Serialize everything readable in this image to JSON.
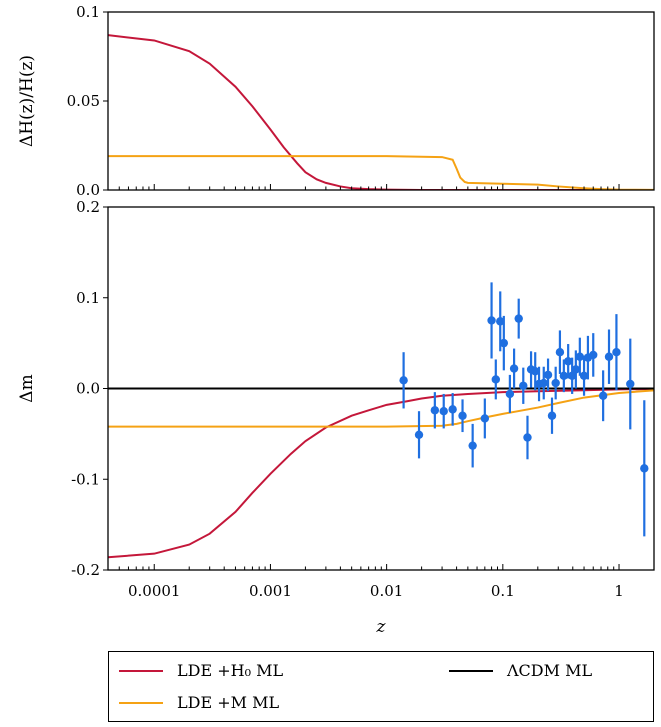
{
  "colors": {
    "lde_h0": "#c4173a",
    "lde_m": "#f5a214",
    "lcdm": "#000000",
    "data": "#1f6fe0"
  },
  "legend": {
    "lde_h0": "LDE +H₀ ML",
    "lde_m": "LDE +M  ML",
    "lcdm": "ΛCDM ML"
  },
  "chart_data": [
    {
      "type": "line",
      "xscale": "log",
      "xlim": [
        4e-05,
        2.0
      ],
      "ylabel": "ΔH(z)/H(z)",
      "ylim": [
        0.0,
        0.1
      ],
      "yticks": [
        "0.0",
        "0.05",
        "0.1"
      ],
      "ytick_values": [
        0.0,
        0.05,
        0.1
      ],
      "series": [
        {
          "name": "LDE +H₀ ML",
          "x": [
            4e-05,
            0.0001,
            0.0002,
            0.0003,
            0.0005,
            0.0007,
            0.001,
            0.0013,
            0.0017,
            0.002,
            0.0025,
            0.003,
            0.004,
            0.005,
            0.007,
            0.01,
            0.02,
            0.05,
            2.0
          ],
          "y": [
            0.087,
            0.084,
            0.078,
            0.071,
            0.058,
            0.047,
            0.034,
            0.024,
            0.015,
            0.01,
            0.006,
            0.004,
            0.002,
            0.001,
            0.0005,
            0.0002,
            0.0,
            0.0,
            0.0
          ]
        },
        {
          "name": "LDE +M  ML",
          "x": [
            4e-05,
            0.001,
            0.01,
            0.03,
            0.037,
            0.04,
            0.043,
            0.047,
            0.05,
            0.1,
            0.2,
            0.3,
            0.5,
            0.7,
            1.0,
            2.0
          ],
          "y": [
            0.019,
            0.019,
            0.019,
            0.0185,
            0.017,
            0.012,
            0.007,
            0.0045,
            0.004,
            0.0035,
            0.003,
            0.002,
            0.001,
            0.0005,
            0.0002,
            0.0001
          ]
        }
      ]
    },
    {
      "type": "line",
      "xscale": "log",
      "xlim": [
        4e-05,
        2.0
      ],
      "xlabel": "z",
      "ylabel": "Δm",
      "ylim": [
        -0.2,
        0.2
      ],
      "xticks": [
        "0.0001",
        "0.001",
        "0.01",
        "0.1",
        "1"
      ],
      "xtick_values": [
        0.0001,
        0.001,
        0.01,
        0.1,
        1
      ],
      "yticks": [
        "-0.2",
        "-0.1",
        "0.0",
        "0.1",
        "0.2"
      ],
      "ytick_values": [
        -0.2,
        -0.1,
        0.0,
        0.1,
        0.2
      ],
      "series": [
        {
          "name": "LDE +H₀ ML",
          "x": [
            4e-05,
            0.0001,
            0.0002,
            0.0003,
            0.0005,
            0.0007,
            0.001,
            0.0015,
            0.002,
            0.003,
            0.005,
            0.007,
            0.01,
            0.015,
            0.02,
            0.03,
            0.05,
            0.1,
            0.2,
            0.5,
            1.0,
            2.0
          ],
          "y": [
            -0.186,
            -0.182,
            -0.172,
            -0.16,
            -0.136,
            -0.115,
            -0.094,
            -0.072,
            -0.058,
            -0.043,
            -0.03,
            -0.024,
            -0.018,
            -0.014,
            -0.011,
            -0.008,
            -0.006,
            -0.004,
            -0.003,
            -0.002,
            -0.001,
            -0.0005
          ]
        },
        {
          "name": "LDE +M  ML",
          "x": [
            4e-05,
            0.001,
            0.01,
            0.03,
            0.04,
            0.05,
            0.07,
            0.1,
            0.2,
            0.3,
            0.5,
            1.0,
            2.0
          ],
          "y": [
            -0.042,
            -0.042,
            -0.042,
            -0.041,
            -0.039,
            -0.036,
            -0.032,
            -0.028,
            -0.021,
            -0.016,
            -0.01,
            -0.005,
            -0.002
          ]
        },
        {
          "name": "ΛCDM ML",
          "x": [
            4e-05,
            2.0
          ],
          "y": [
            0.0,
            0.0
          ]
        }
      ],
      "scatter": {
        "name": "data",
        "points": [
          {
            "x": 0.014,
            "y": 0.009,
            "err": 0.031
          },
          {
            "x": 0.019,
            "y": -0.051,
            "err": 0.026
          },
          {
            "x": 0.026,
            "y": -0.024,
            "err": 0.02
          },
          {
            "x": 0.031,
            "y": -0.025,
            "err": 0.019
          },
          {
            "x": 0.037,
            "y": -0.023,
            "err": 0.018
          },
          {
            "x": 0.045,
            "y": -0.03,
            "err": 0.018
          },
          {
            "x": 0.055,
            "y": -0.063,
            "err": 0.024
          },
          {
            "x": 0.07,
            "y": -0.033,
            "err": 0.022
          },
          {
            "x": 0.08,
            "y": 0.075,
            "err": 0.042
          },
          {
            "x": 0.087,
            "y": 0.01,
            "err": 0.022
          },
          {
            "x": 0.095,
            "y": 0.074,
            "err": 0.033
          },
          {
            "x": 0.102,
            "y": 0.05,
            "err": 0.03
          },
          {
            "x": 0.115,
            "y": -0.006,
            "err": 0.021
          },
          {
            "x": 0.125,
            "y": 0.022,
            "err": 0.022
          },
          {
            "x": 0.137,
            "y": 0.077,
            "err": 0.022
          },
          {
            "x": 0.15,
            "y": 0.003,
            "err": 0.02
          },
          {
            "x": 0.163,
            "y": -0.054,
            "err": 0.024
          },
          {
            "x": 0.175,
            "y": 0.021,
            "err": 0.02
          },
          {
            "x": 0.19,
            "y": 0.019,
            "err": 0.021
          },
          {
            "x": 0.205,
            "y": 0.005,
            "err": 0.019
          },
          {
            "x": 0.225,
            "y": 0.006,
            "err": 0.018
          },
          {
            "x": 0.245,
            "y": 0.015,
            "err": 0.018
          },
          {
            "x": 0.265,
            "y": -0.03,
            "err": 0.02
          },
          {
            "x": 0.285,
            "y": 0.006,
            "err": 0.018
          },
          {
            "x": 0.31,
            "y": 0.04,
            "err": 0.024
          },
          {
            "x": 0.335,
            "y": 0.014,
            "err": 0.018
          },
          {
            "x": 0.365,
            "y": 0.03,
            "err": 0.019
          },
          {
            "x": 0.395,
            "y": 0.014,
            "err": 0.02
          },
          {
            "x": 0.425,
            "y": 0.021,
            "err": 0.021
          },
          {
            "x": 0.46,
            "y": 0.035,
            "err": 0.021
          },
          {
            "x": 0.5,
            "y": 0.014,
            "err": 0.022
          },
          {
            "x": 0.54,
            "y": 0.034,
            "err": 0.024
          },
          {
            "x": 0.6,
            "y": 0.037,
            "err": 0.024
          },
          {
            "x": 0.73,
            "y": -0.008,
            "err": 0.028
          },
          {
            "x": 0.82,
            "y": 0.035,
            "err": 0.03
          },
          {
            "x": 0.95,
            "y": 0.04,
            "err": 0.042
          },
          {
            "x": 1.25,
            "y": 0.005,
            "err": 0.05
          },
          {
            "x": 1.65,
            "y": -0.088,
            "err": 0.075
          }
        ]
      }
    }
  ]
}
